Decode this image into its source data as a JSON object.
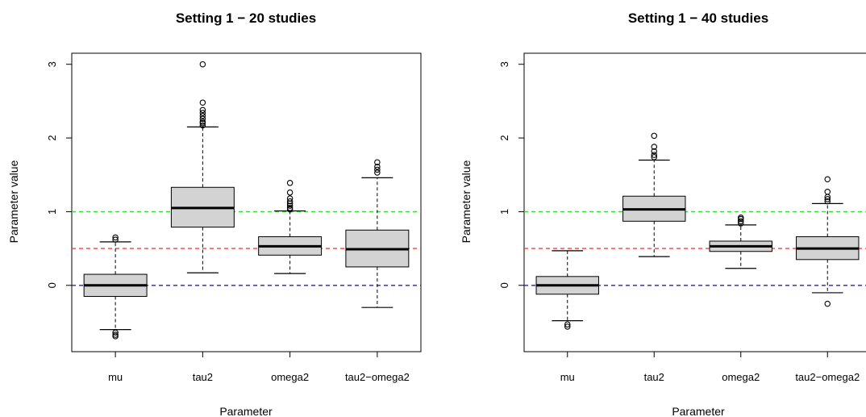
{
  "chart_data": [
    {
      "type": "boxplot",
      "title": "Setting 1 − 20 studies",
      "xlabel": "Parameter",
      "ylabel": "Parameter value",
      "ylim": [
        -0.9,
        3.15
      ],
      "yticks": [
        "0",
        "1",
        "2",
        "3"
      ],
      "ytick_values": [
        0,
        1,
        2,
        3
      ],
      "categories": [
        "mu",
        "tau2",
        "omega2",
        "tau2−omega2"
      ],
      "boxes": [
        {
          "whisker_low": -0.6,
          "q1": -0.15,
          "median": 0.0,
          "q3": 0.15,
          "whisker_high": 0.59,
          "outliers": [
            0.62,
            0.65,
            -0.64,
            -0.67,
            -0.69
          ]
        },
        {
          "whisker_low": 0.17,
          "q1": 0.79,
          "median": 1.05,
          "q3": 1.33,
          "whisker_high": 2.15,
          "outliers": [
            2.17,
            2.2,
            2.22,
            2.26,
            2.3,
            2.34,
            2.38,
            2.48,
            3.0
          ]
        },
        {
          "whisker_low": 0.16,
          "q1": 0.41,
          "median": 0.53,
          "q3": 0.66,
          "whisker_high": 1.01,
          "outliers": [
            1.03,
            1.05,
            1.08,
            1.11,
            1.14,
            1.18,
            1.26,
            1.39
          ]
        },
        {
          "whisker_low": -0.3,
          "q1": 0.25,
          "median": 0.49,
          "q3": 0.75,
          "whisker_high": 1.46,
          "outliers": [
            1.53,
            1.57,
            1.61,
            1.67
          ]
        }
      ],
      "reference_lines": [
        {
          "value": 1.0,
          "color": "#33dd33",
          "style": "dashed"
        },
        {
          "value": 0.5,
          "color": "#ee4444",
          "style": "dashed"
        },
        {
          "value": 0.0,
          "color": "#2222cc",
          "style": "dashed"
        }
      ],
      "box_fill": "#d3d3d3",
      "grid": false
    },
    {
      "type": "boxplot",
      "title": "Setting 1 − 40 studies",
      "xlabel": "Parameter",
      "ylabel": "Parameter value",
      "ylim": [
        -0.9,
        3.15
      ],
      "yticks": [
        "0",
        "1",
        "2",
        "3"
      ],
      "ytick_values": [
        0,
        1,
        2,
        3
      ],
      "categories": [
        "mu",
        "tau2",
        "omega2",
        "tau2−omega2"
      ],
      "boxes": [
        {
          "whisker_low": -0.48,
          "q1": -0.12,
          "median": 0.0,
          "q3": 0.12,
          "whisker_high": 0.47,
          "outliers": [
            -0.53,
            -0.56
          ]
        },
        {
          "whisker_low": 0.39,
          "q1": 0.87,
          "median": 1.03,
          "q3": 1.21,
          "whisker_high": 1.7,
          "outliers": [
            1.74,
            1.77,
            1.82,
            1.88,
            2.03
          ]
        },
        {
          "whisker_low": 0.23,
          "q1": 0.46,
          "median": 0.53,
          "q3": 0.6,
          "whisker_high": 0.82,
          "outliers": [
            0.84,
            0.87,
            0.9,
            0.92
          ]
        },
        {
          "whisker_low": -0.1,
          "q1": 0.35,
          "median": 0.5,
          "q3": 0.66,
          "whisker_high": 1.11,
          "outliers": [
            1.14,
            1.17,
            1.2,
            1.27,
            1.44,
            -0.25
          ]
        }
      ],
      "reference_lines": [
        {
          "value": 1.0,
          "color": "#33dd33",
          "style": "dashed"
        },
        {
          "value": 0.5,
          "color": "#ee4444",
          "style": "dashed"
        },
        {
          "value": 0.0,
          "color": "#2222cc",
          "style": "dashed"
        }
      ],
      "box_fill": "#d3d3d3",
      "grid": false
    }
  ]
}
